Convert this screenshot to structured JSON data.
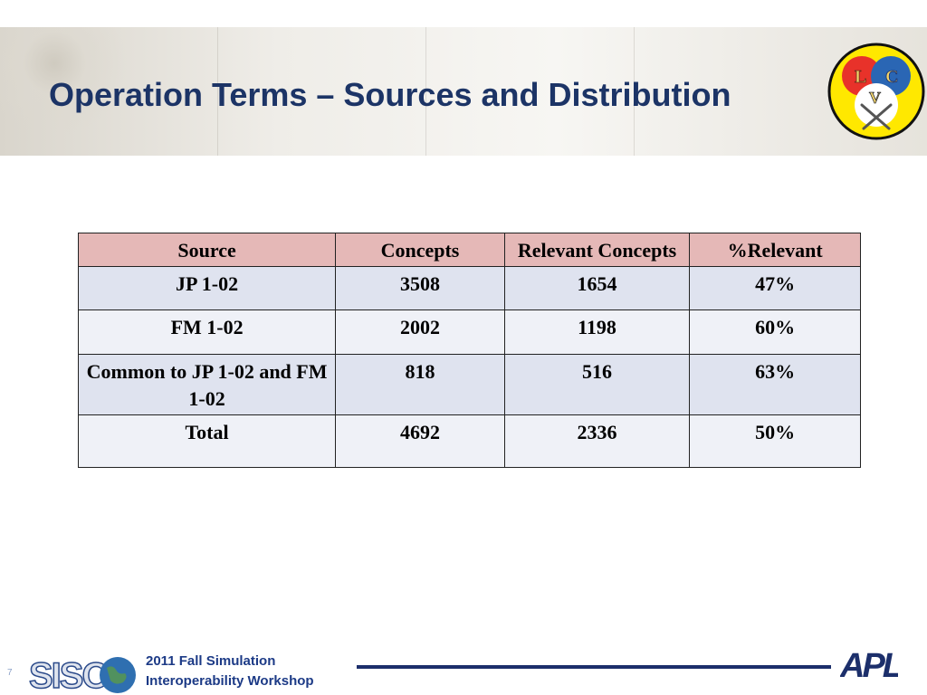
{
  "slide": {
    "title": "Operation Terms – Sources and Distribution",
    "number": "7"
  },
  "logo_lcv": {
    "letters": [
      "L",
      "C",
      "V"
    ]
  },
  "table": {
    "headers": [
      "Source",
      "Concepts",
      "Relevant Concepts",
      "%Relevant"
    ],
    "rows": [
      {
        "source": "JP 1-02",
        "concepts": "3508",
        "relevant": "1654",
        "pct": "47%"
      },
      {
        "source": "FM 1-02",
        "concepts": "2002",
        "relevant": "1198",
        "pct": "60%"
      },
      {
        "source": "Common to JP 1-02 and FM 1-02",
        "concepts": "818",
        "relevant": "516",
        "pct": "63%"
      },
      {
        "source": "Total",
        "concepts": "4692",
        "relevant": "2336",
        "pct": "50%"
      }
    ]
  },
  "footer": {
    "siso_logo_text": "SISO",
    "workshop_line1": "2011 Fall Simulation",
    "workshop_line2": "Interoperability Workshop",
    "apl_logo_text": "APL"
  },
  "colors": {
    "title": "#1c3466",
    "header_row": "#e5b8b7",
    "row_dark": "#dfe3ef",
    "row_light": "#eff1f7",
    "footer_rule": "#1c2f6b"
  }
}
